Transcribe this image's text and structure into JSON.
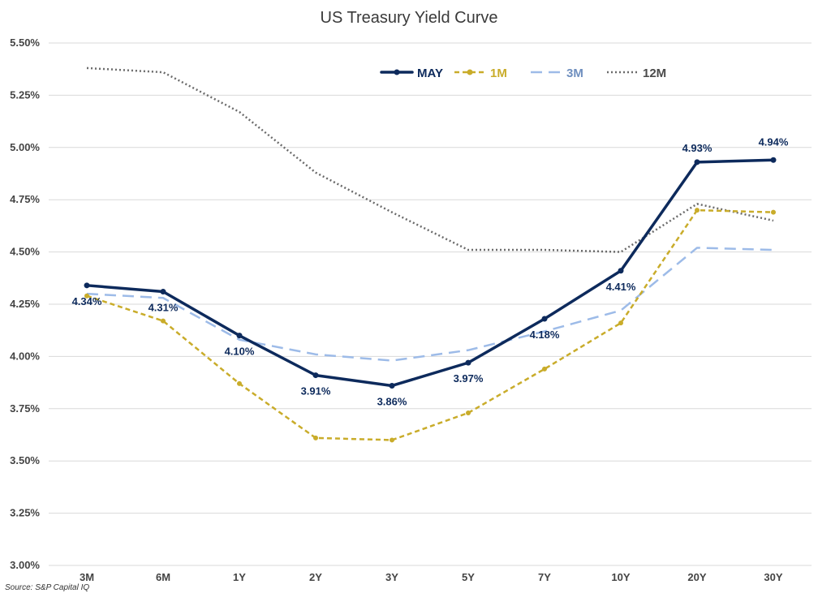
{
  "chart_data": {
    "type": "line",
    "title": "US Treasury Yield Curve",
    "xlabel": "",
    "ylabel": "",
    "categories": [
      "3M",
      "6M",
      "1Y",
      "2Y",
      "3Y",
      "5Y",
      "7Y",
      "10Y",
      "20Y",
      "30Y"
    ],
    "y_ticks": [
      "3.00%",
      "3.25%",
      "3.50%",
      "3.75%",
      "4.00%",
      "4.25%",
      "4.50%",
      "4.75%",
      "5.00%",
      "5.25%",
      "5.50%"
    ],
    "ylim": [
      3.0,
      5.5
    ],
    "grid": true,
    "legend": "top-center",
    "series": [
      {
        "name": "MAY",
        "values": [
          4.34,
          4.31,
          4.1,
          3.91,
          3.86,
          3.97,
          4.18,
          4.41,
          4.93,
          4.94
        ],
        "labels": [
          "4.34%",
          "4.31%",
          "4.10%",
          "3.91%",
          "3.86%",
          "3.97%",
          "4.18%",
          "4.41%",
          "4.93%",
          "4.94%"
        ],
        "color": "#0d2a5c",
        "style": "solid",
        "markers": true
      },
      {
        "name": "1M",
        "values": [
          4.29,
          4.17,
          3.87,
          3.61,
          3.6,
          3.73,
          3.94,
          4.16,
          4.7,
          4.69
        ],
        "color": "#c9ac2a",
        "style": "dashed",
        "markers": true
      },
      {
        "name": "3M",
        "values": [
          4.3,
          4.28,
          4.08,
          4.01,
          3.98,
          4.03,
          4.12,
          4.22,
          4.52,
          4.51
        ],
        "color": "#9dbbe8",
        "style": "long-dashed",
        "markers": false
      },
      {
        "name": "12M",
        "values": [
          5.38,
          5.36,
          5.17,
          4.88,
          4.69,
          4.51,
          4.51,
          4.5,
          4.73,
          4.65
        ],
        "color": "#6b6b6b",
        "style": "dotted",
        "markers": false
      }
    ]
  },
  "source": "Source: S&P Capital IQ"
}
